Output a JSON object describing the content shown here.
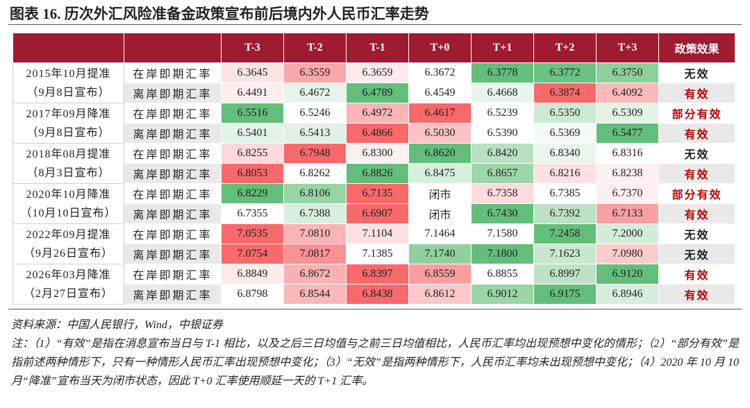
{
  "title": "图表 16. 历次外汇风险准备金政策宣布前后境内外人民币汇率走势",
  "table": {
    "header": [
      "T-3",
      "T-2",
      "T-1",
      "T+0",
      "T+1",
      "T+2",
      "T+3",
      "政策效果"
    ],
    "groups": [
      {
        "event": "2015年10月提准",
        "announce": "（9月8日宣布）",
        "rows": [
          {
            "type": "在岸即期汇率",
            "cells": [
              "6.3645",
              "6.3559",
              "6.3659",
              "6.3672",
              "6.3778",
              "6.3772",
              "6.3750"
            ],
            "colors": [
              "#fce4e5",
              "#f8a7aa",
              "#fdeaea",
              "#ffffff",
              "#63be7b",
              "#6bc281",
              "#8dd09c"
            ],
            "effect": "无效",
            "effect_color": "#222222"
          },
          {
            "type": "离岸即期汇率",
            "cells": [
              "6.4491",
              "6.4672",
              "6.4789",
              "6.4549",
              "6.4668",
              "6.3874",
              "6.4092"
            ],
            "colors": [
              "#fdeeee",
              "#e6f4e9",
              "#63be7b",
              "#ffffff",
              "#e8f5eb",
              "#f8696b",
              "#fab9bb"
            ],
            "effect": "有效",
            "effect_color": "#c00000"
          }
        ]
      },
      {
        "event": "2017年09月降准",
        "announce": "（9月8日宣布）",
        "rows": [
          {
            "type": "在岸即期汇率",
            "cells": [
              "6.5516",
              "6.5246",
              "6.4972",
              "6.4617",
              "6.5239",
              "6.5350",
              "6.5309"
            ],
            "colors": [
              "#63be7b",
              "#ffffff",
              "#f9b5b8",
              "#f8696b",
              "#ffffff",
              "#cde9d4",
              "#e3f3e6"
            ],
            "effect": "部分有效",
            "effect_color": "#c00000"
          },
          {
            "type": "离岸即期汇率",
            "cells": [
              "6.5401",
              "6.5413",
              "6.4866",
              "6.5030",
              "6.5390",
              "6.5369",
              "6.5477"
            ],
            "colors": [
              "#e4f3e7",
              "#e0f1e4",
              "#f8696b",
              "#fbc3c5",
              "#ffffff",
              "#f3faf4",
              "#63be7b"
            ],
            "effect": "有效",
            "effect_color": "#c00000"
          }
        ]
      },
      {
        "event": "2018年08月提准",
        "announce": "（8月3日宣布）",
        "rows": [
          {
            "type": "在岸即期汇率",
            "cells": [
              "6.8255",
              "6.7948",
              "6.8300",
              "6.8620",
              "6.8420",
              "6.8340",
              "6.8316"
            ],
            "colors": [
              "#fcd9db",
              "#f8696b",
              "#fdf0f0",
              "#63be7b",
              "#b9e0c2",
              "#eaf6ec",
              "#ffffff"
            ],
            "effect": "无效",
            "effect_color": "#222222"
          },
          {
            "type": "离岸即期汇率",
            "cells": [
              "6.8053",
              "6.8262",
              "6.8826",
              "6.8475",
              "6.8657",
              "6.8216",
              "6.8238"
            ],
            "colors": [
              "#f8696b",
              "#ffffff",
              "#63be7b",
              "#d8efdd",
              "#9dd6a9",
              "#fde0e1",
              "#fef1f1"
            ],
            "effect": "有效",
            "effect_color": "#c00000"
          }
        ]
      },
      {
        "event": "2020年10月降准",
        "announce": "（10月10日宣布）",
        "rows": [
          {
            "type": "在岸即期汇率",
            "cells": [
              "6.8229",
              "6.8106",
              "6.7135",
              "闭市",
              "6.7358",
              "6.7385",
              "6.7370"
            ],
            "colors": [
              "#63be7b",
              "#98d4a5",
              "#f8696b",
              "#ffffff",
              "#fcdcdd",
              "#ffffff",
              "#fef0f0"
            ],
            "effect": "部分有效",
            "effect_color": "#c00000"
          },
          {
            "type": "离岸即期汇率",
            "cells": [
              "6.7355",
              "6.7388",
              "6.6907",
              "闭市",
              "6.7430",
              "6.7392",
              "6.7133"
            ],
            "colors": [
              "#ffffff",
              "#d9efdd",
              "#f8696b",
              "#ffffff",
              "#63be7b",
              "#bce1c4",
              "#f9a0a3"
            ],
            "effect": "有效",
            "effect_color": "#c00000"
          }
        ]
      },
      {
        "event": "2022年09月提准",
        "announce": "（9月26日宣布）",
        "rows": [
          {
            "type": "在岸即期汇率",
            "cells": [
              "7.0535",
              "7.0810",
              "7.1104",
              "7.1464",
              "7.1580",
              "7.2458",
              "7.2000"
            ],
            "colors": [
              "#f8696b",
              "#fbb4b6",
              "#fde1e2",
              "#ffffff",
              "#ffffff",
              "#63be7b",
              "#d3ecd9"
            ],
            "effect": "无效",
            "effect_color": "#222222"
          },
          {
            "type": "离岸即期汇率",
            "cells": [
              "7.0754",
              "7.0817",
              "7.1385",
              "7.1740",
              "7.1800",
              "7.1623",
              "7.0980"
            ],
            "colors": [
              "#f8696b",
              "#fa9194",
              "#ffffff",
              "#8fd19d",
              "#63be7b",
              "#c9e7cf",
              "#fbcccd"
            ],
            "effect": "无效",
            "effect_color": "#222222"
          }
        ]
      },
      {
        "event": "2026年03月降准",
        "announce": "（2月27日宣布）",
        "rows": [
          {
            "type": "在岸即期汇率",
            "cells": [
              "6.8849",
              "6.8672",
              "6.8397",
              "6.8559",
              "6.8855",
              "6.8997",
              "6.9120"
            ],
            "colors": [
              "#fdeaea",
              "#fab1b3",
              "#f8696b",
              "#fa9d9f",
              "#ffffff",
              "#bde2c5",
              "#63be7b"
            ],
            "effect": "有效",
            "effect_color": "#c00000"
          },
          {
            "type": "离岸即期汇率",
            "cells": [
              "6.8798",
              "6.8544",
              "6.8438",
              "6.8612",
              "6.9012",
              "6.9175",
              "6.8946"
            ],
            "colors": [
              "#ffffff",
              "#fab8ba",
              "#f8696b",
              "#fbc9ca",
              "#9ad5a7",
              "#63be7b",
              "#d6eedb"
            ],
            "effect": "有效",
            "effect_color": "#c00000"
          }
        ]
      }
    ]
  },
  "source": "资料来源：中国人民银行，Wind，中银证券",
  "note": "注：（1）“有效”是指在消息宣布当日与 T-1 相比，以及之后三日均值与之前三日均值相比，人民币汇率均出现预想中变化的情形；（2）“部分有效”是指前述两种情形下，只有一种情形人民币汇率出现预想中变化；（3）“无效”是指两种情形下，人民币汇率均未出现预想中变化；（4）2020 年 10 月 10 月“降准”宣布当天为闭市状态，因此 T+0 汇率使用顺延一天的 T+1 汇率。"
}
